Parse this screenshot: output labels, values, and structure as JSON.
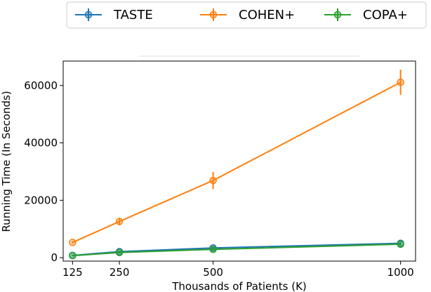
{
  "chart_data": {
    "type": "line",
    "title": "",
    "xlabel": "Thousands of Patients (K)",
    "ylabel": "Running Time (In Seconds)",
    "x": [
      125,
      250,
      500,
      1000
    ],
    "x_tick_labels": [
      "125",
      "250",
      "500",
      "1000"
    ],
    "xlim": [
      100,
      1040
    ],
    "y_ticks": [
      0,
      20000,
      40000,
      60000
    ],
    "y_tick_labels": [
      "0",
      "20000",
      "40000",
      "60000"
    ],
    "ylim": [
      -1200,
      68500
    ],
    "grid": false,
    "legend_position": "top",
    "series": [
      {
        "name": "TASTE",
        "color": "#1f77b4",
        "values": [
          800,
          2100,
          3400,
          5000
        ],
        "errors": [
          150,
          250,
          350,
          450
        ]
      },
      {
        "name": "COHEN+",
        "color": "#ff7f0e",
        "values": [
          5300,
          12600,
          26900,
          61100
        ],
        "errors": [
          400,
          1300,
          3000,
          4400
        ]
      },
      {
        "name": "COPA+",
        "color": "#2ca02c",
        "values": [
          700,
          1800,
          2900,
          4700
        ],
        "errors": [
          150,
          250,
          300,
          400
        ]
      }
    ]
  }
}
